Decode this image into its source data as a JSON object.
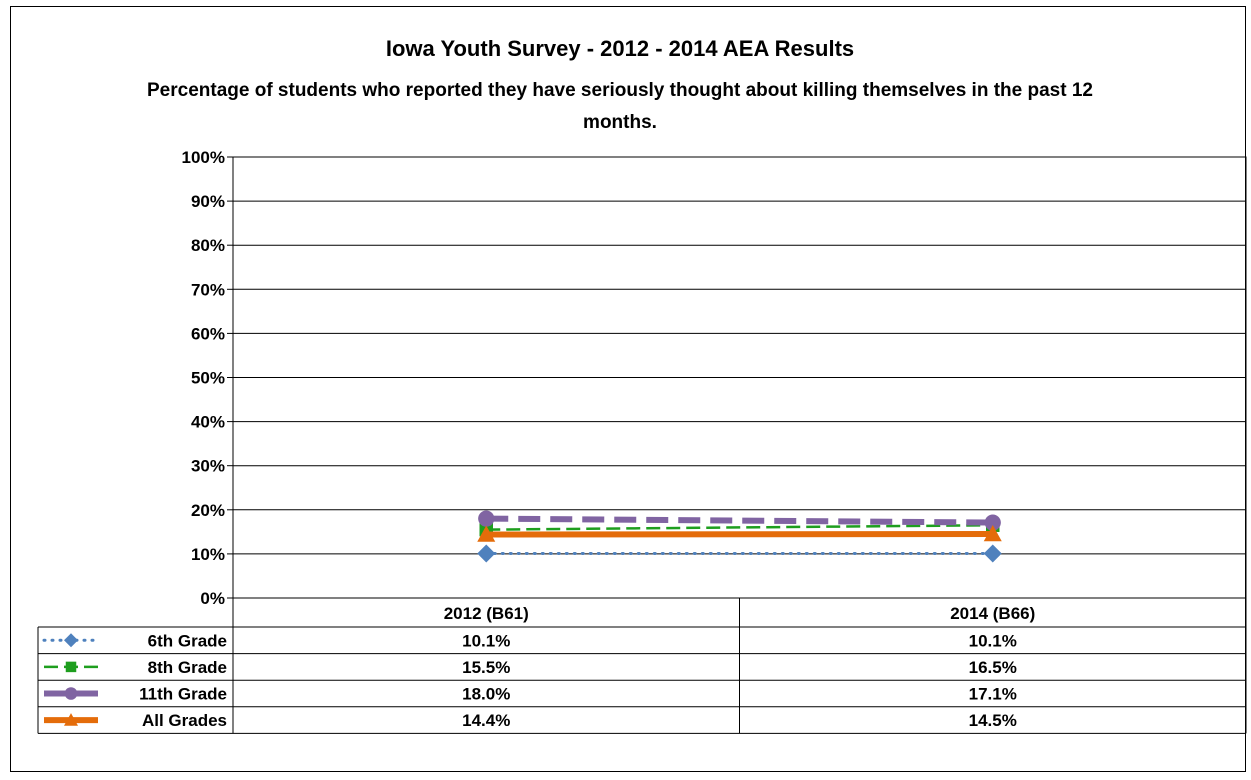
{
  "chart_data": {
    "type": "line",
    "title": "Iowa Youth Survey - 2012 - 2014 AEA Results",
    "subtitle": "Percentage of students who reported they have seriously thought about killing themselves in the past 12 months.",
    "categories": [
      "2012 (B61)",
      "2014 (B66)"
    ],
    "ylim": [
      0,
      100
    ],
    "yticks": [
      "0%",
      "10%",
      "20%",
      "30%",
      "40%",
      "50%",
      "60%",
      "70%",
      "80%",
      "90%",
      "100%"
    ],
    "grid": true,
    "legend": "data-table",
    "series": [
      {
        "name": "6th Grade",
        "values": [
          10.1,
          10.1
        ],
        "labels": [
          "10.1%",
          "10.1%"
        ],
        "color": "#4F81BD",
        "marker": "diamond",
        "style": "dotted"
      },
      {
        "name": "8th Grade",
        "values": [
          15.5,
          16.5
        ],
        "labels": [
          "15.5%",
          "16.5%"
        ],
        "color": "#1E9E1E",
        "marker": "square",
        "style": "dashed"
      },
      {
        "name": "11th Grade",
        "values": [
          18.0,
          17.1
        ],
        "labels": [
          "18.0%",
          "17.1%"
        ],
        "color": "#8064A2",
        "marker": "circle",
        "style": "longdash"
      },
      {
        "name": "All Grades",
        "values": [
          14.4,
          14.5
        ],
        "labels": [
          "14.4%",
          "14.5%"
        ],
        "color": "#E46C0A",
        "marker": "triangle",
        "style": "solid"
      }
    ]
  }
}
